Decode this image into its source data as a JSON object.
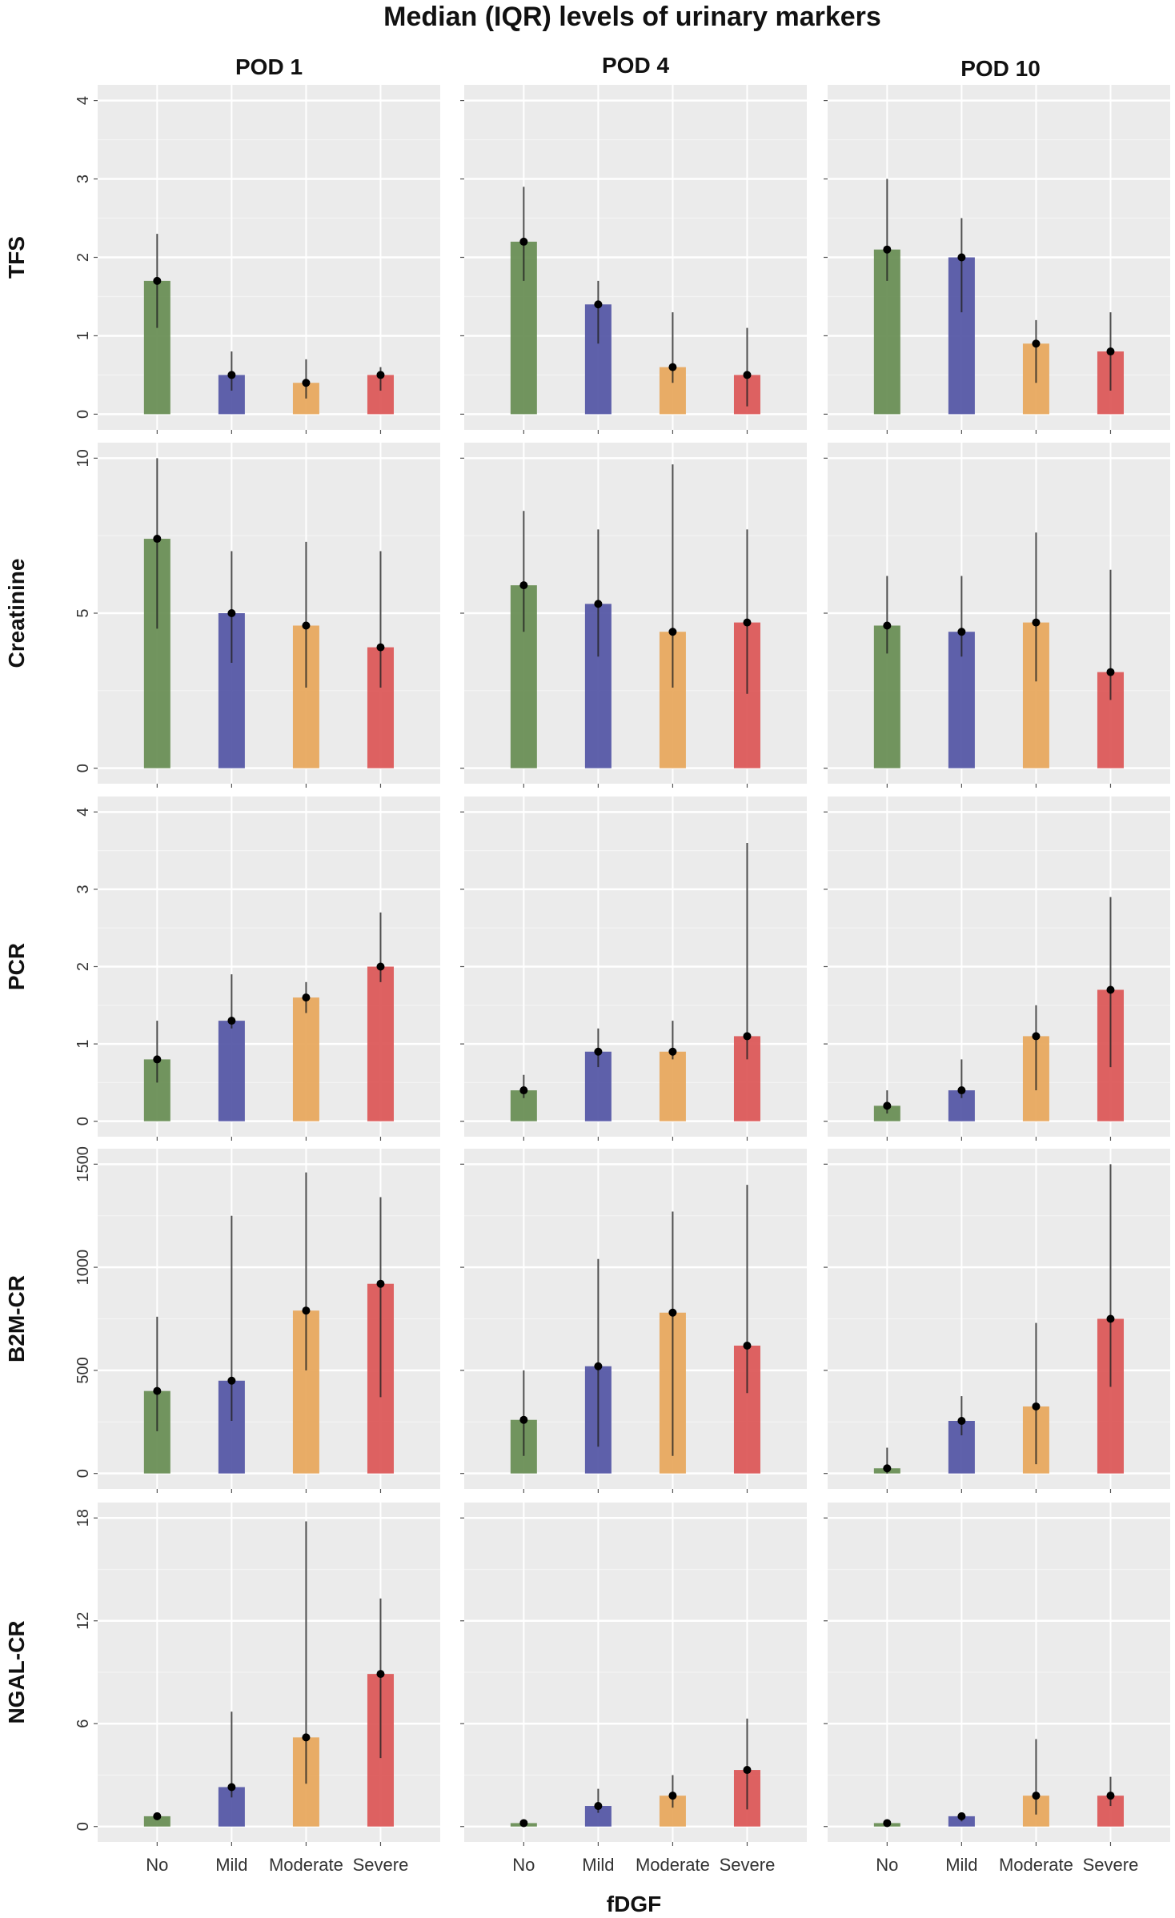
{
  "chart_data": {
    "type": "bar",
    "title": "Median (IQR) levels of urinary markers",
    "xlabel": "fDGF",
    "categories": [
      "No",
      "Mild",
      "Moderate",
      "Severe"
    ],
    "colors": {
      "No": "#6a8f56",
      "Mild": "#5659a6",
      "Moderate": "#e8a95f",
      "Severe": "#dc5a5a"
    },
    "panel_background": "#ebebeb",
    "grid": true,
    "legend": "none",
    "columns": [
      "POD 1",
      "POD 4",
      "POD 10"
    ],
    "rows": [
      {
        "name": "TFS",
        "ylim": [
          0,
          4
        ],
        "yticks": [
          "0",
          "1",
          "2",
          "3",
          "4"
        ],
        "panels": [
          {
            "column": "POD 1",
            "median": [
              1.7,
              0.5,
              0.4,
              0.5
            ],
            "q1": [
              1.1,
              0.3,
              0.2,
              0.3
            ],
            "q3": [
              2.3,
              0.8,
              0.7,
              0.6
            ]
          },
          {
            "column": "POD 4",
            "median": [
              2.2,
              1.4,
              0.6,
              0.5
            ],
            "q1": [
              1.7,
              0.9,
              0.4,
              0.1
            ],
            "q3": [
              2.9,
              1.7,
              1.3,
              1.1
            ]
          },
          {
            "column": "POD 10",
            "median": [
              2.1,
              2.0,
              0.9,
              0.8
            ],
            "q1": [
              1.7,
              1.3,
              0.4,
              0.3
            ],
            "q3": [
              3.0,
              2.5,
              1.2,
              1.3
            ]
          }
        ]
      },
      {
        "name": "Creatinine",
        "ylim": [
          0,
          10
        ],
        "yticks": [
          "0",
          "5",
          "10"
        ],
        "panels": [
          {
            "column": "POD 1",
            "median": [
              7.4,
              5.0,
              4.6,
              3.9
            ],
            "q1": [
              4.5,
              3.4,
              2.6,
              2.6
            ],
            "q3": [
              10.0,
              7.0,
              7.3,
              7.0
            ]
          },
          {
            "column": "POD 4",
            "median": [
              5.9,
              5.3,
              4.4,
              4.7
            ],
            "q1": [
              4.4,
              3.6,
              2.6,
              2.4
            ],
            "q3": [
              8.3,
              7.7,
              9.8,
              7.7
            ]
          },
          {
            "column": "POD 10",
            "median": [
              4.6,
              4.4,
              4.7,
              3.1
            ],
            "q1": [
              3.7,
              3.6,
              2.8,
              2.2
            ],
            "q3": [
              6.2,
              6.2,
              7.6,
              6.4
            ]
          }
        ]
      },
      {
        "name": "PCR",
        "ylim": [
          0,
          4
        ],
        "yticks": [
          "0",
          "1",
          "2",
          "3",
          "4"
        ],
        "panels": [
          {
            "column": "POD 1",
            "median": [
              0.8,
              1.3,
              1.6,
              2.0
            ],
            "q1": [
              0.5,
              1.2,
              1.4,
              1.8
            ],
            "q3": [
              1.3,
              1.9,
              1.8,
              2.7
            ]
          },
          {
            "column": "POD 4",
            "median": [
              0.4,
              0.9,
              0.9,
              1.1
            ],
            "q1": [
              0.3,
              0.7,
              0.8,
              0.8
            ],
            "q3": [
              0.6,
              1.2,
              1.3,
              3.6
            ]
          },
          {
            "column": "POD 10",
            "median": [
              0.2,
              0.4,
              1.1,
              1.7
            ],
            "q1": [
              0.1,
              0.3,
              0.4,
              0.7
            ],
            "q3": [
              0.4,
              0.8,
              1.5,
              2.9
            ]
          }
        ]
      },
      {
        "name": "B2M-CR",
        "ylim": [
          0,
          1500
        ],
        "yticks": [
          "0",
          "500",
          "1000",
          "1500"
        ],
        "panels": [
          {
            "column": "POD 1",
            "median": [
              400,
              450,
              790,
              920
            ],
            "q1": [
              205,
              255,
              500,
              370
            ],
            "q3": [
              760,
              1250,
              1460,
              1340
            ]
          },
          {
            "column": "POD 4",
            "median": [
              260,
              520,
              780,
              620
            ],
            "q1": [
              85,
              130,
              85,
              390
            ],
            "q3": [
              500,
              1040,
              1270,
              1400
            ]
          },
          {
            "column": "POD 10",
            "median": [
              25,
              255,
              325,
              750
            ],
            "q1": [
              0,
              185,
              45,
              420
            ],
            "q3": [
              125,
              375,
              730,
              1500
            ]
          }
        ]
      },
      {
        "name": "NGAL-CR",
        "ylim": [
          0,
          18
        ],
        "yticks": [
          "0",
          "6",
          "12",
          "18"
        ],
        "panels": [
          {
            "column": "POD 1",
            "median": [
              0.6,
              2.3,
              5.2,
              8.9
            ],
            "q1": [
              0.4,
              1.7,
              2.5,
              4.0
            ],
            "q3": [
              0.8,
              6.7,
              17.8,
              13.3
            ]
          },
          {
            "column": "POD 4",
            "median": [
              0.2,
              1.2,
              1.8,
              3.3
            ],
            "q1": [
              0.1,
              0.8,
              1.1,
              1.0
            ],
            "q3": [
              0.3,
              2.2,
              3.0,
              6.3
            ]
          },
          {
            "column": "POD 10",
            "median": [
              0.2,
              0.6,
              1.8,
              1.8
            ],
            "q1": [
              0.1,
              0.3,
              0.7,
              1.2
            ],
            "q3": [
              0.3,
              0.8,
              5.1,
              2.9
            ]
          }
        ]
      }
    ]
  }
}
